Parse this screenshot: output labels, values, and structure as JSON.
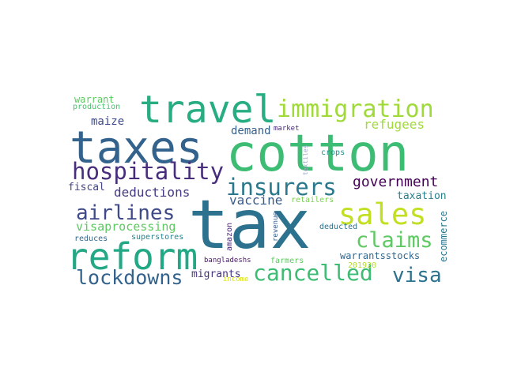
{
  "words": [
    {
      "text": "tax",
      "color": "#2c728e"
    },
    {
      "text": "cotton",
      "color": "#3dbc74"
    },
    {
      "text": "taxes",
      "color": "#33638d"
    },
    {
      "text": "travel",
      "color": "#27ad81"
    },
    {
      "text": "reform",
      "color": "#22a884"
    },
    {
      "text": "immigration",
      "color": "#a0da39"
    },
    {
      "text": "sales",
      "color": "#c2df23"
    },
    {
      "text": "hospitality",
      "color": "#472d7b"
    },
    {
      "text": "insurers",
      "color": "#2a788e"
    },
    {
      "text": "airlines",
      "color": "#3e4a89"
    },
    {
      "text": "claims",
      "color": "#5ec962"
    },
    {
      "text": "cancelled",
      "color": "#3dbc74"
    },
    {
      "text": "lockdowns",
      "color": "#33638d"
    },
    {
      "text": "visa",
      "color": "#2c728e"
    },
    {
      "text": "government",
      "color": "#440154"
    },
    {
      "text": "refugees",
      "color": "#a0da39"
    },
    {
      "text": "deductions",
      "color": "#443983"
    },
    {
      "text": "vaccine",
      "color": "#365c8d"
    },
    {
      "text": "visaprocessing",
      "color": "#5ec962"
    },
    {
      "text": "maize",
      "color": "#3e4a89"
    },
    {
      "text": "demand",
      "color": "#355f8d"
    },
    {
      "text": "taxation",
      "color": "#277f8e"
    },
    {
      "text": "fiscal",
      "color": "#414487"
    },
    {
      "text": "migrants",
      "color": "#46327e"
    },
    {
      "text": "warrantsstocks",
      "color": "#31688e"
    },
    {
      "text": "ecommerce",
      "color": "#2a788e"
    },
    {
      "text": "warrant",
      "color": "#5ec962"
    },
    {
      "text": "production",
      "color": "#4ac16d"
    },
    {
      "text": "market",
      "color": "#482878"
    },
    {
      "text": "crops",
      "color": "#21918c"
    },
    {
      "text": "textiles",
      "color": "#9fa8c9"
    },
    {
      "text": "revenue",
      "color": "#365c8d"
    },
    {
      "text": "amazon",
      "color": "#482475"
    },
    {
      "text": "deducted",
      "color": "#2d708e"
    },
    {
      "text": "retailers",
      "color": "#7ad151"
    },
    {
      "text": "201920",
      "color": "#b5de2b"
    },
    {
      "text": "superstores",
      "color": "#26828e"
    },
    {
      "text": "reduces",
      "color": "#31688e"
    },
    {
      "text": "bangladeshs",
      "color": "#481668"
    },
    {
      "text": "farmers",
      "color": "#5ec962"
    },
    {
      "text": "income",
      "color": "#d8e219"
    }
  ]
}
